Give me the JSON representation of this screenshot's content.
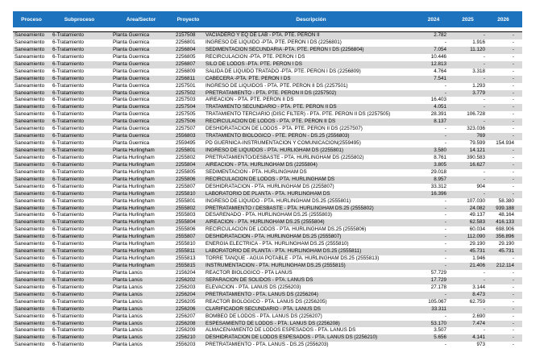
{
  "colors": {
    "header_bg": "#1E73BE",
    "header_text": "#FFFFFF",
    "band_gray": "#D9D9D9",
    "body_text": "#000000",
    "rule": "#000000"
  },
  "table": {
    "columns": [
      "Proceso",
      "Subproceso",
      "Área/Sector",
      "Proyecto",
      "Descripción",
      "2024",
      "2025",
      "2026"
    ],
    "rows": [
      [
        "Saneamiento",
        "6-Tratamiento",
        "Planta Guernica",
        "2157508",
        "VACIADERO Y EQ DE LAB - PTA. PTE. PERON II",
        "2.782",
        "-",
        "-"
      ],
      [
        "Saneamiento",
        "6-Tratamiento",
        "Planta Guernica",
        "2256801",
        "INGRESO DE LÍQUIDO -PTA. PTE. PERÓN I DS (2256801)",
        "-",
        "1.916",
        "-"
      ],
      [
        "Saneamiento",
        "6-Tratamiento",
        "Planta Guernica",
        "2256804",
        "SEDIMENTACIÓN SECUNDARIA -PTA. PTE. PERÓN I DS (2256804)",
        "7.054",
        "11.120",
        "-"
      ],
      [
        "Saneamiento",
        "6-Tratamiento",
        "Planta Guernica",
        "2256805",
        "RECIRCULACIÓN -PTA. PTE. PERÓN I DS",
        "10.446",
        "-",
        "-"
      ],
      [
        "Saneamiento",
        "6-Tratamiento",
        "Planta Guernica",
        "2256807",
        "SILO DE LODOS -PTA. PTE. PERÓN I DS",
        "12.813",
        "-",
        "-"
      ],
      [
        "Saneamiento",
        "6-Tratamiento",
        "Planta Guernica",
        "2256809",
        "SALIDA DE LÍQUIDO TRATADO -PTA. PTE. PERÓN I DS (2256809)",
        "4.764",
        "3.318",
        "-"
      ],
      [
        "Saneamiento",
        "6-Tratamiento",
        "Planta Guernica",
        "2256811",
        "CABECERA -PTA. PTE. PERÓN I DS",
        "7.541",
        "-",
        "-"
      ],
      [
        "Saneamiento",
        "6-Tratamiento",
        "Planta Guernica",
        "2257501",
        "INGRESO DE LIQUIDOS - PTA. PTE. PERÓN II DS (2257501)",
        "-",
        "1.293",
        "-"
      ],
      [
        "Saneamiento",
        "6-Tratamiento",
        "Planta Guernica",
        "2257502",
        "PRETRATAMIENTO  - PTA. PTE. PERÓN II DS (2257502)",
        "-",
        "3.779",
        "-"
      ],
      [
        "Saneamiento",
        "6-Tratamiento",
        "Planta Guernica",
        "2257503",
        "AIREACIÓN - PTA. PTE. PERÓN II DS",
        "16.403",
        "-",
        "-"
      ],
      [
        "Saneamiento",
        "6-Tratamiento",
        "Planta Guernica",
        "2257504",
        "TRATAMIENTO SECUNDARIO - PTA. PTE. PERÓN II DS",
        "4.051",
        "-",
        "-"
      ],
      [
        "Saneamiento",
        "6-Tratamiento",
        "Planta Guernica",
        "2257505",
        "TRATAMIENTO TERCIARIO (DISC FILTER) - PTA. PTE. PERÓN II DS (2257505)",
        "28.391",
        "106.728",
        "-"
      ],
      [
        "Saneamiento",
        "6-Tratamiento",
        "Planta Guernica",
        "2257506",
        "RECIRCULACIÓN DE LODOS - PTA. PTE. PERÓN II DS",
        "8.137",
        "-",
        "-"
      ],
      [
        "Saneamiento",
        "6-Tratamiento",
        "Planta Guernica",
        "2257507",
        "DESHIDRATACIÓN DE LODOS - PTA. PTE. PERÓN II DS (2257507)",
        "-",
        "323.036",
        "-"
      ],
      [
        "Saneamiento",
        "6-Tratamiento",
        "Planta Guernica",
        "2556803",
        "TRATAMIENTO BIOLÓGICO  - PTE. PERÓN - DS.25 (2556803)",
        "-",
        "769",
        "-"
      ],
      [
        "Saneamiento",
        "6-Tratamiento",
        "Planta Guernica",
        "2559495",
        "PD GUERNICA-INSTRUMENTACION Y COMUNICACIÓN(2559495)",
        "-",
        "79.599",
        "154.934"
      ],
      [
        "Saneamiento",
        "6-Tratamiento",
        "Planta Hurlingham",
        "2255801",
        "INGRESO DE LIQUIDOS - PTA. HURLIGHAM DS (2255801)",
        "3.580",
        "14.121",
        "-"
      ],
      [
        "Saneamiento",
        "6-Tratamiento",
        "Planta Hurlingham",
        "2255802",
        "PRETRATAMIENTO/DESBASTE - PTA. HURLINGHAM DS (2255802)",
        "8.761",
        "390.583",
        "-"
      ],
      [
        "Saneamiento",
        "6-Tratamiento",
        "Planta Hurlingham",
        "2255804",
        "AIREACIÓN - PTA. HURLINGHAM DS (2255804)",
        "3.805",
        "16.627",
        "-"
      ],
      [
        "Saneamiento",
        "6-Tratamiento",
        "Planta Hurlingham",
        "2255805",
        "SEDIMENTACIÓN - PTA. HURLINGHAM DS",
        "29.018",
        "-",
        "-"
      ],
      [
        "Saneamiento",
        "6-Tratamiento",
        "Planta Hurlingham",
        "2255806",
        "RECIRCULACIÓN DE LODOS - PTA. HURLINGHAM DS",
        "8.957",
        "-",
        "-"
      ],
      [
        "Saneamiento",
        "6-Tratamiento",
        "Planta Hurlingham",
        "2255807",
        "DESHIDRATACIÓN - PTA. HURLINGHAM DS (2255807)",
        "33.312",
        "904",
        "-"
      ],
      [
        "Saneamiento",
        "6-Tratamiento",
        "Planta Hurlingham",
        "2255810",
        "LABORATORIO DE PLANTA - PTA. HURLINGHAM DS",
        "16.396",
        "-",
        "-"
      ],
      [
        "Saneamiento",
        "6-Tratamiento",
        "Planta Hurlingham",
        "2555801",
        "INGRESO DE LÍQUIDO - PTA. HURLINGHAM DS.25 (2555801)",
        "-",
        "107.030",
        "58.380"
      ],
      [
        "Saneamiento",
        "6-Tratamiento",
        "Planta Hurlingham",
        "2555802",
        "PRETRATAMIENTO / DESBASTE - PTA. HURLINGHAM DS.25 (2555802)",
        "-",
        "24.082",
        "939.188"
      ],
      [
        "Saneamiento",
        "6-Tratamiento",
        "Planta Hurlingham",
        "2555803",
        "DESARENADO - PTA. HURLINGHAM DS.25 (2555803)",
        "-",
        "49.137",
        "48.164"
      ],
      [
        "Saneamiento",
        "6-Tratamiento",
        "Planta Hurlingham",
        "2555804",
        "AIREACIÓN - PTA. HURLINGHAM DS.25 (2555804)",
        "-",
        "62.583",
        "416.133"
      ],
      [
        "Saneamiento",
        "6-Tratamiento",
        "Planta Hurlingham",
        "2555806",
        "RECIRCULACIÓN DE LODOS - PTA. HURLINGHAM DS.25 (2555806)",
        "-",
        "60.034",
        "698.906"
      ],
      [
        "Saneamiento",
        "6-Tratamiento",
        "Planta Hurlingham",
        "2555807",
        "DESHIDRATACIÓN - PTA. HURLINGHAM DS.25 (2555807)",
        "-",
        "112.090",
        "356.896"
      ],
      [
        "Saneamiento",
        "6-Tratamiento",
        "Planta Hurlingham",
        "2555810",
        "ENERGÍA ELÉCTRICA - PTA. HURLINGHAM DS.25 (2555810)",
        "-",
        "29.190",
        "29.190"
      ],
      [
        "Saneamiento",
        "6-Tratamiento",
        "Planta Hurlingham",
        "2555811",
        "LABORATORIO DE PLANTA - PTA. HURLINGHAM DS.25 (2555811)",
        "-",
        "45.731",
        "45.731"
      ],
      [
        "Saneamiento",
        "6-Tratamiento",
        "Planta Hurlingham",
        "2555813",
        "TORRE TANQUE - AGUA POTABLE  - PTA. HURLINGHAM DS.25 (2555813)",
        "-",
        "1.946",
        "-"
      ],
      [
        "Saneamiento",
        "6-Tratamiento",
        "Planta Hurlingham",
        "2555815",
        "INSTRUMENTACIÓN - PTA. HURLINGHAM DS.25 (2555815)",
        "-",
        "21.406",
        "212.114"
      ],
      [
        "Saneamiento",
        "6-Tratamiento",
        "Planta Lanús",
        "2156204",
        "REACTOR BIOLOGICO - PTA LANÚS",
        "57.729",
        "-",
        "-"
      ],
      [
        "Saneamiento",
        "6-Tratamiento",
        "Planta Lanús",
        "2256202",
        "SEPARACIÓN DE SÓLIDOS - PTA. LANÚS DS",
        "17.729",
        "-",
        "-"
      ],
      [
        "Saneamiento",
        "6-Tratamiento",
        "Planta Lanús",
        "2256203",
        "ELEVACIÓN - PTA. LANÚS DS (2256203)",
        "27.178",
        "3.144",
        "-"
      ],
      [
        "Saneamiento",
        "6-Tratamiento",
        "Planta Lanús",
        "2256204",
        "PRETRATAMIENTO - PTA. LANÚS DS (2256204)",
        "-",
        "8.473",
        "-"
      ],
      [
        "Saneamiento",
        "6-Tratamiento",
        "Planta Lanús",
        "2256205",
        "REACTOR BIOLÓGICO - PTA. LANÚS DS (2256205)",
        "105.067",
        "62.759",
        "-"
      ],
      [
        "Saneamiento",
        "6-Tratamiento",
        "Planta Lanús",
        "2256206",
        "CLARIFICADOR SECUNDARIO - PTA. LANÚS DS",
        "33.311",
        "-",
        "-"
      ],
      [
        "Saneamiento",
        "6-Tratamiento",
        "Planta Lanús",
        "2256207",
        "BOMBEO DE LODOS - PTA. LANÚS DS (2256207)",
        "-",
        "2.690",
        "-"
      ],
      [
        "Saneamiento",
        "6-Tratamiento",
        "Planta Lanús",
        "2256208",
        "ESPESAMIENTO DE LODOS - PTA. LANÚS DS (2256208)",
        "53.170",
        "7.474",
        "-"
      ],
      [
        "Saneamiento",
        "6-Tratamiento",
        "Planta Lanús",
        "2256209",
        "ALMACENAMIENTO DE LODOS ESPESADOS - PTA. LANÚS DS",
        "3.507",
        "-",
        "-"
      ],
      [
        "Saneamiento",
        "6-Tratamiento",
        "Planta Lanús",
        "2256210",
        "DESHIDRATACIÓN DE LODOS ESPESADOS - PTA. LANÚS DS (2256210)",
        "5.656",
        "4.141",
        "-"
      ],
      [
        "Saneamiento",
        "6-Tratamiento",
        "Planta Lanús",
        "2556203",
        "PRETRATAMIENTO - PTA. LANÚS - DS.25 (2556203)",
        "-",
        "973",
        "-"
      ]
    ],
    "column_keys": [
      "proceso",
      "subproceso",
      "area-sector",
      "proyecto",
      "descripcion",
      "y2024",
      "y2025",
      "y2026"
    ]
  }
}
